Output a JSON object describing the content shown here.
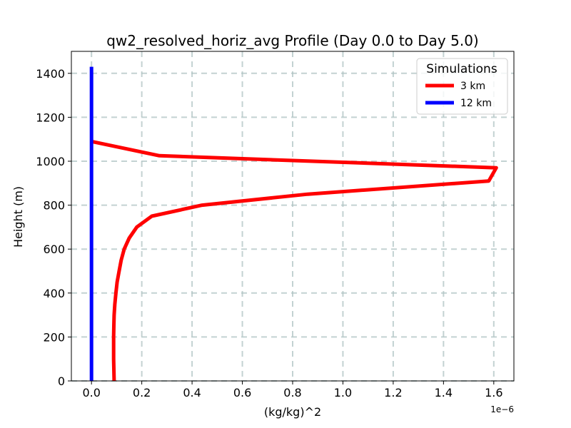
{
  "chart_data": {
    "type": "line",
    "title": "qw2_resolved_horiz_avg Profile (Day 0.0 to Day 5.0)",
    "xlabel": "(kg/kg)^2",
    "ylabel": "Height (m)",
    "x_offset_label": "1e−6",
    "xlim": [
      -0.08,
      1.68
    ],
    "ylim": [
      0,
      1500
    ],
    "xticks": [
      0.0,
      0.2,
      0.4,
      0.6,
      0.8,
      1.0,
      1.2,
      1.4,
      1.6
    ],
    "xtick_labels": [
      "0.0",
      "0.2",
      "0.4",
      "0.6",
      "0.8",
      "1.0",
      "1.2",
      "1.4",
      "1.6"
    ],
    "yticks": [
      0,
      200,
      400,
      600,
      800,
      1000,
      1200,
      1400
    ],
    "ytick_labels": [
      "0",
      "200",
      "400",
      "600",
      "800",
      "1000",
      "1200",
      "1400"
    ],
    "grid": true,
    "legend": {
      "title": "Simulations",
      "position": "top-right"
    },
    "series": [
      {
        "name": "3 km",
        "color": "#ff0000",
        "x": [
          0.09,
          0.088,
          0.088,
          0.089,
          0.09,
          0.093,
          0.097,
          0.102,
          0.11,
          0.118,
          0.13,
          0.15,
          0.18,
          0.24,
          0.44,
          0.86,
          1.58,
          1.61,
          0.27,
          0.0
        ],
        "y": [
          0,
          100,
          200,
          250,
          300,
          350,
          400,
          450,
          500,
          550,
          600,
          650,
          700,
          750,
          800,
          850,
          910,
          970,
          1025,
          1090
        ]
      },
      {
        "name": "12 km",
        "color": "#0000ff",
        "x": [
          0.0,
          0.0
        ],
        "y": [
          0,
          1430
        ]
      }
    ]
  }
}
